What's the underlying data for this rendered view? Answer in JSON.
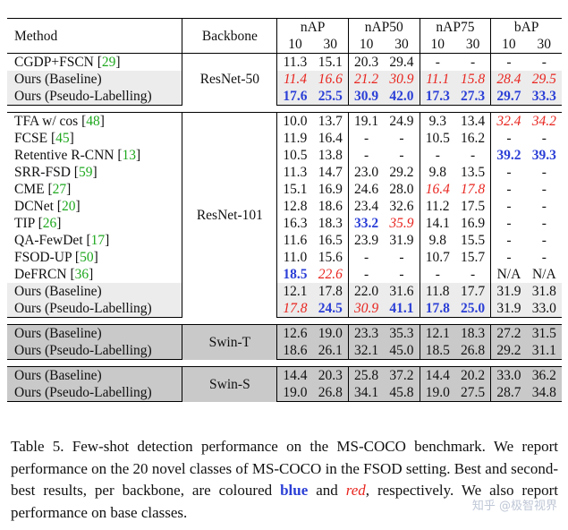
{
  "table": {
    "header": {
      "method": "Method",
      "backbone": "Backbone",
      "groups": [
        "nAP",
        "nAP50",
        "nAP75",
        "bAP"
      ],
      "shots": [
        "10",
        "30"
      ]
    },
    "sections": [
      {
        "backbone": "ResNet-50",
        "rows": [
          {
            "method": "CGDP+FSCN",
            "cite": "29",
            "shade": "",
            "vals": [
              [
                "11.3",
                ""
              ],
              [
                "15.1",
                ""
              ],
              [
                "20.3",
                ""
              ],
              [
                "29.4",
                ""
              ],
              [
                "-",
                ""
              ],
              [
                "-",
                ""
              ],
              [
                "-",
                ""
              ],
              [
                "-",
                ""
              ]
            ]
          },
          {
            "method": "Ours (Baseline)",
            "cite": "",
            "shade": "light",
            "vals": [
              [
                "11.4",
                "red"
              ],
              [
                "16.6",
                "red"
              ],
              [
                "21.2",
                "red"
              ],
              [
                "30.9",
                "red"
              ],
              [
                "11.1",
                "red"
              ],
              [
                "15.8",
                "red"
              ],
              [
                "28.4",
                "red"
              ],
              [
                "29.5",
                "red"
              ]
            ]
          },
          {
            "method": "Ours (Pseudo-Labelling)",
            "cite": "",
            "shade": "light",
            "vals": [
              [
                "17.6",
                "blue"
              ],
              [
                "25.5",
                "blue"
              ],
              [
                "30.9",
                "blue"
              ],
              [
                "42.0",
                "blue"
              ],
              [
                "17.3",
                "blue"
              ],
              [
                "27.3",
                "blue"
              ],
              [
                "29.7",
                "blue"
              ],
              [
                "33.3",
                "blue"
              ]
            ]
          }
        ]
      },
      {
        "backbone": "ResNet-101",
        "rows": [
          {
            "method": "TFA w/ cos",
            "cite": "48",
            "shade": "",
            "vals": [
              [
                "10.0",
                ""
              ],
              [
                "13.7",
                ""
              ],
              [
                "19.1",
                ""
              ],
              [
                "24.9",
                ""
              ],
              [
                "9.3",
                ""
              ],
              [
                "13.4",
                ""
              ],
              [
                "32.4",
                "red"
              ],
              [
                "34.2",
                "red"
              ]
            ]
          },
          {
            "method": "FCSE",
            "cite": "45",
            "shade": "",
            "vals": [
              [
                "11.9",
                ""
              ],
              [
                "16.4",
                ""
              ],
              [
                "-",
                ""
              ],
              [
                "-",
                ""
              ],
              [
                "10.5",
                ""
              ],
              [
                "16.2",
                ""
              ],
              [
                "-",
                ""
              ],
              [
                "-",
                ""
              ]
            ]
          },
          {
            "method": "Retentive R-CNN",
            "cite": "13",
            "shade": "",
            "vals": [
              [
                "10.5",
                ""
              ],
              [
                "13.8",
                ""
              ],
              [
                "-",
                ""
              ],
              [
                "-",
                ""
              ],
              [
                "-",
                ""
              ],
              [
                "-",
                ""
              ],
              [
                "39.2",
                "blue"
              ],
              [
                "39.3",
                "blue"
              ]
            ]
          },
          {
            "method": "SRR-FSD",
            "cite": "59",
            "shade": "",
            "vals": [
              [
                "11.3",
                ""
              ],
              [
                "14.7",
                ""
              ],
              [
                "23.0",
                ""
              ],
              [
                "29.2",
                ""
              ],
              [
                "9.8",
                ""
              ],
              [
                "13.5",
                ""
              ],
              [
                "-",
                ""
              ],
              [
                "-",
                ""
              ]
            ]
          },
          {
            "method": "CME",
            "cite": "27",
            "shade": "",
            "vals": [
              [
                "15.1",
                ""
              ],
              [
                "16.9",
                ""
              ],
              [
                "24.6",
                ""
              ],
              [
                "28.0",
                ""
              ],
              [
                "16.4",
                "red"
              ],
              [
                "17.8",
                "red"
              ],
              [
                "-",
                ""
              ],
              [
                "-",
                ""
              ]
            ]
          },
          {
            "method": "DCNet",
            "cite": "20",
            "shade": "",
            "vals": [
              [
                "12.8",
                ""
              ],
              [
                "18.6",
                ""
              ],
              [
                "23.4",
                ""
              ],
              [
                "32.6",
                ""
              ],
              [
                "11.2",
                ""
              ],
              [
                "17.5",
                ""
              ],
              [
                "-",
                ""
              ],
              [
                "-",
                ""
              ]
            ]
          },
          {
            "method": "TIP",
            "cite": "26",
            "shade": "",
            "vals": [
              [
                "16.3",
                ""
              ],
              [
                "18.3",
                ""
              ],
              [
                "33.2",
                "blue"
              ],
              [
                "35.9",
                "red"
              ],
              [
                "14.1",
                ""
              ],
              [
                "16.9",
                ""
              ],
              [
                "-",
                ""
              ],
              [
                "-",
                ""
              ]
            ]
          },
          {
            "method": "QA-FewDet",
            "cite": "17",
            "shade": "",
            "vals": [
              [
                "11.6",
                ""
              ],
              [
                "16.5",
                ""
              ],
              [
                "23.9",
                ""
              ],
              [
                "31.9",
                ""
              ],
              [
                "9.8",
                ""
              ],
              [
                "15.5",
                ""
              ],
              [
                "-",
                ""
              ],
              [
                "-",
                ""
              ]
            ]
          },
          {
            "method": "FSOD-UP",
            "cite": "50",
            "shade": "",
            "vals": [
              [
                "11.0",
                ""
              ],
              [
                "15.6",
                ""
              ],
              [
                "-",
                ""
              ],
              [
                "-",
                ""
              ],
              [
                "10.7",
                ""
              ],
              [
                "15.7",
                ""
              ],
              [
                "-",
                ""
              ],
              [
                "-",
                ""
              ]
            ]
          },
          {
            "method": "DeFRCN ",
            "cite": "36",
            "shade": "",
            "vals": [
              [
                "18.5",
                "blue"
              ],
              [
                "22.6",
                "red"
              ],
              [
                "-",
                ""
              ],
              [
                "-",
                ""
              ],
              [
                "-",
                ""
              ],
              [
                "-",
                ""
              ],
              [
                "N/A",
                ""
              ],
              [
                "N/A",
                ""
              ]
            ]
          },
          {
            "method": "Ours (Baseline)",
            "cite": "",
            "shade": "light",
            "vals": [
              [
                "12.1",
                ""
              ],
              [
                "17.8",
                ""
              ],
              [
                "22.0",
                ""
              ],
              [
                "31.6",
                ""
              ],
              [
                "11.8",
                ""
              ],
              [
                "17.7",
                ""
              ],
              [
                "31.9",
                ""
              ],
              [
                "31.8",
                ""
              ]
            ]
          },
          {
            "method": "Ours (Pseudo-Labelling)",
            "cite": "",
            "shade": "light",
            "vals": [
              [
                "17.8",
                "red"
              ],
              [
                "24.5",
                "blue"
              ],
              [
                "30.9",
                "red"
              ],
              [
                "41.1",
                "blue"
              ],
              [
                "17.8",
                "blue"
              ],
              [
                "25.0",
                "blue"
              ],
              [
                "31.9",
                ""
              ],
              [
                "33.0",
                ""
              ]
            ]
          }
        ]
      },
      {
        "backbone": "Swin-T",
        "rows": [
          {
            "method": "Ours (Baseline)",
            "cite": "",
            "shade": "dark",
            "vals": [
              [
                "12.6",
                ""
              ],
              [
                "19.0",
                ""
              ],
              [
                "23.3",
                ""
              ],
              [
                "35.3",
                ""
              ],
              [
                "12.1",
                ""
              ],
              [
                "18.3",
                ""
              ],
              [
                "27.2",
                ""
              ],
              [
                "31.5",
                ""
              ]
            ]
          },
          {
            "method": "Ours (Pseudo-Labelling)",
            "cite": "",
            "shade": "dark",
            "vals": [
              [
                "18.6",
                ""
              ],
              [
                "26.1",
                ""
              ],
              [
                "32.1",
                ""
              ],
              [
                "45.0",
                ""
              ],
              [
                "18.5",
                ""
              ],
              [
                "26.8",
                ""
              ],
              [
                "29.2",
                ""
              ],
              [
                "31.1",
                ""
              ]
            ]
          }
        ]
      },
      {
        "backbone": "Swin-S",
        "rows": [
          {
            "method": "Ours (Baseline)",
            "cite": "",
            "shade": "dark",
            "vals": [
              [
                "14.4",
                ""
              ],
              [
                "20.3",
                ""
              ],
              [
                "25.8",
                ""
              ],
              [
                "37.2",
                ""
              ],
              [
                "14.4",
                ""
              ],
              [
                "20.2",
                ""
              ],
              [
                "33.0",
                ""
              ],
              [
                "36.2",
                ""
              ]
            ]
          },
          {
            "method": "Ours (Pseudo-Labelling)",
            "cite": "",
            "shade": "dark",
            "vals": [
              [
                "19.0",
                ""
              ],
              [
                "26.8",
                ""
              ],
              [
                "34.1",
                ""
              ],
              [
                "45.8",
                ""
              ],
              [
                "19.0",
                ""
              ],
              [
                "27.5",
                ""
              ],
              [
                "28.7",
                ""
              ],
              [
                "34.8",
                ""
              ]
            ]
          }
        ]
      }
    ]
  },
  "caption": {
    "part1": "Table 5.  Few-shot detection performance on the MS-COCO benchmark. We report performance on the 20 novel classes of MS-COCO in the FSOD setting. Best and second-best results, per backbone, are coloured ",
    "blue_word": "blue",
    "part2": " and ",
    "red_word": "red",
    "part3": ", respectively. We also report performance on base classes."
  },
  "watermark": "知乎 @极智视界"
}
